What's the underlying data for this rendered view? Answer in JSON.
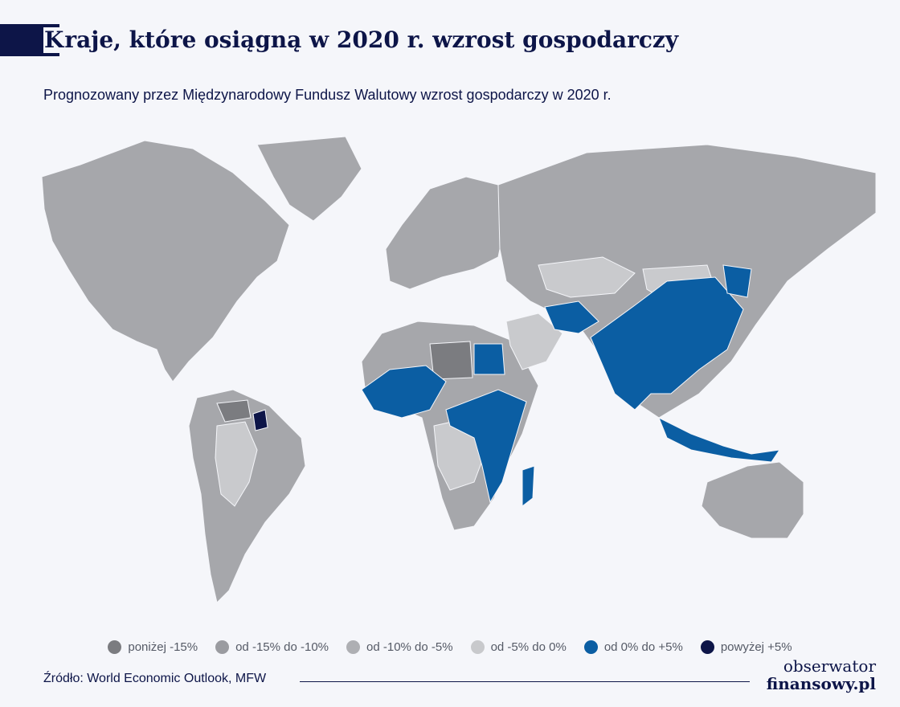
{
  "header": {
    "title_initial": "K",
    "title_rest": "raje, które osiągną w 2020 r. wzrost gospodarczy",
    "subtitle": "Prognozowany przez Międzynarodowy Fundusz Walutowy wzrost gospodarczy w 2020 r."
  },
  "legend": {
    "items": [
      {
        "label": "poniżej -15%",
        "color": "#7b7c80"
      },
      {
        "label": "od -15% do -10%",
        "color": "#9a9ba0"
      },
      {
        "label": "od -10% do -5%",
        "color": "#aeafb3"
      },
      {
        "label": "od -5% do 0%",
        "color": "#c8c9cc"
      },
      {
        "label": "od 0% do +5%",
        "color": "#0b5ea3"
      },
      {
        "label": "powyżej +5%",
        "color": "#0d1548"
      }
    ]
  },
  "map": {
    "colors": {
      "base": "#a6a7ab",
      "light": "#c9cacd",
      "lightest": "#e0e1e4",
      "dark": "#7b7c80",
      "growth": "#0b5ea3",
      "high": "#0d1548"
    }
  },
  "footer": {
    "source": "Źródło: World Economic Outlook, MFW",
    "logo_line1": "obserwator",
    "logo_line2": "finansowy.pl"
  }
}
